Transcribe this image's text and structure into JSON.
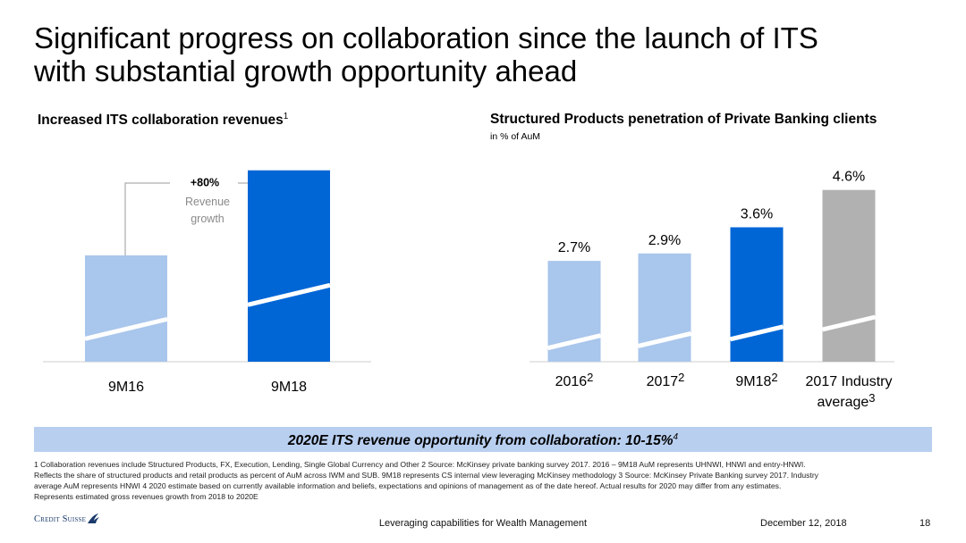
{
  "slide": {
    "title_line1": "Significant progress on collaboration since the launch of ITS",
    "title_line2": "with substantial growth opportunity ahead"
  },
  "left_chart": {
    "title": "Increased ITS collaboration revenues",
    "title_sup": "1",
    "growth_label": "+80%",
    "growth_caption_line1": "Revenue",
    "growth_caption_line2": "growth"
  },
  "right_chart": {
    "title": "Structured Products penetration of Private Banking clients",
    "subtitle": "in % of AuM"
  },
  "chart_data": [
    {
      "type": "bar",
      "title": "Increased ITS collaboration revenues",
      "categories": [
        "9M16",
        "9M18"
      ],
      "values": [
        1.0,
        1.8
      ],
      "ylim": [
        0,
        2.1
      ],
      "annotation": "+80% Revenue growth",
      "colors": [
        "#a9c6ec",
        "#0066d6"
      ]
    },
    {
      "type": "bar",
      "title": "Structured Products penetration of Private Banking clients",
      "subtitle": "in % of AuM",
      "categories": [
        "2016",
        "2017",
        "9M18",
        "2017 Industry average"
      ],
      "category_sups": [
        "2",
        "2",
        "2",
        "3"
      ],
      "values": [
        2.7,
        2.9,
        3.6,
        4.6
      ],
      "value_labels": [
        "2.7%",
        "2.9%",
        "3.6%",
        "4.6%"
      ],
      "ylim": [
        0,
        5.2
      ],
      "colors": [
        "#a9c6ec",
        "#a9c6ec",
        "#0066d6",
        "#b1b1b1"
      ]
    }
  ],
  "banner": {
    "text": "2020E  ITS revenue opportunity from collaboration: 10-15%",
    "sup": "4"
  },
  "footnotes": {
    "line1": "1 Collaboration revenues include Structured Products, FX, Execution, Lending, Single Global Currency and Other     2 Source: McKinsey private banking survey 2017. 2016 – 9M18 AuM represents UHNWI, HNWI and entry-HNWI.",
    "line2": "Reflects the share of structured products and retail products as percent of AuM across IWM and SUB. 9M18 represents CS internal view leveraging McKinsey methodology     3 Source: McKinsey Private Banking survey 2017. Industry",
    "line3": "average AuM represents HNWI     4  2020 estimate based on currently available information and beliefs, expectations and opinions of management as of the date hereof. Actual results for 2020 may differ from any estimates.",
    "line4": "Represents estimated gross revenues growth from 2018 to 2020E"
  },
  "footer": {
    "logo": "Credit Suisse",
    "center": "Leveraging capabilities for Wealth Management",
    "date": "December 12, 2018",
    "page": "18"
  }
}
